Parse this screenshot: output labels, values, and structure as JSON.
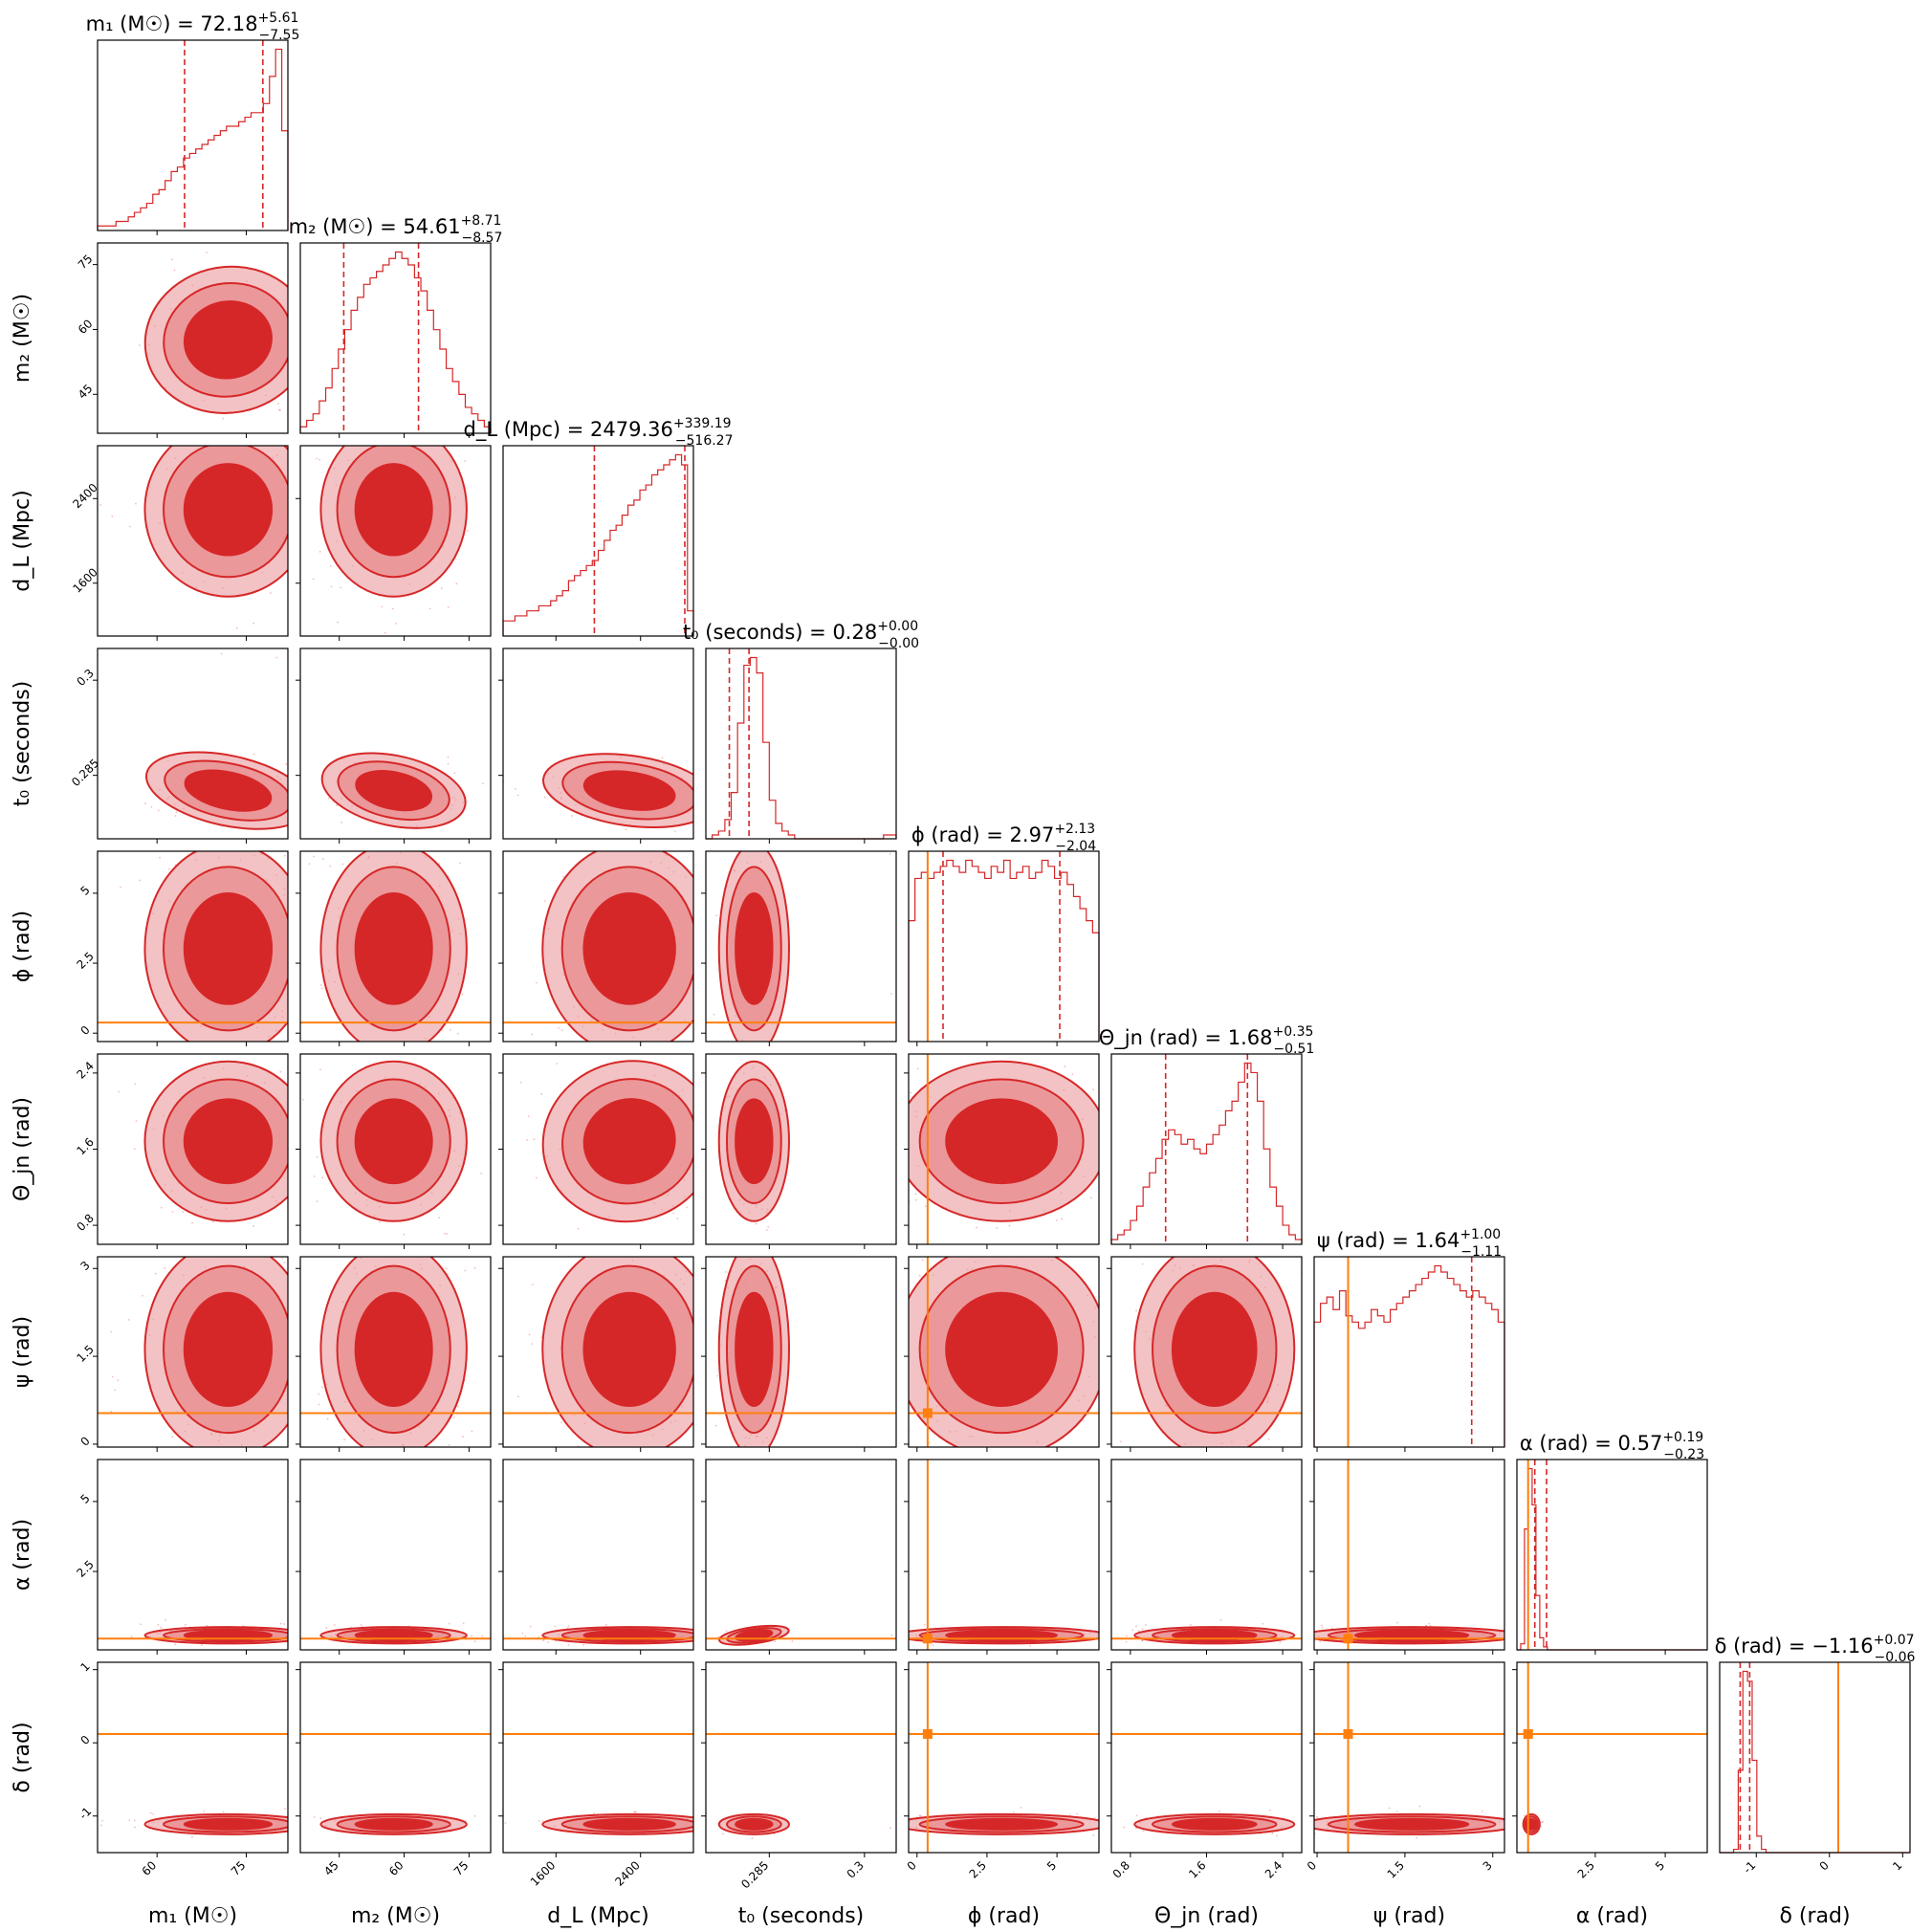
{
  "chart_data": {
    "type": "corner",
    "colors": {
      "posterior": "#d62728",
      "posterior_light": "#e99093",
      "truth": "#ff7f0e",
      "frame": "#000000"
    },
    "parameters": [
      {
        "label": "m₁ (M☉)",
        "title": "m₁ (M☉) = 72.18",
        "median": 72.18,
        "err_plus": "+5.61",
        "err_minus": "−7.55",
        "range": [
          50,
          82
        ],
        "ticks": [
          60,
          75
        ],
        "quantiles": [
          64.63,
          77.79
        ],
        "truth": null,
        "hist": [
          1,
          1,
          1,
          2,
          2,
          3,
          4,
          5,
          6,
          8,
          9,
          11,
          13,
          14,
          16,
          17,
          18,
          19,
          20,
          21,
          22,
          23,
          23,
          24,
          25,
          26,
          26,
          28,
          34,
          40,
          22
        ]
      },
      {
        "label": "m₂ (M☉)",
        "title": "m₂ (M☉) = 54.61",
        "median": 54.61,
        "err_plus": "+8.71",
        "err_minus": "−8.57",
        "range": [
          36,
          80
        ],
        "ticks": [
          45,
          60,
          75
        ],
        "quantiles": [
          46.04,
          63.32
        ],
        "truth": null,
        "hist": [
          1,
          2,
          3,
          5,
          7,
          10,
          13,
          16,
          19,
          21,
          23,
          24,
          25,
          26,
          27,
          28,
          27,
          26,
          24,
          22,
          19,
          16,
          13,
          10,
          8,
          6,
          4,
          3,
          2,
          1
        ]
      },
      {
        "label": "d_L (Mpc)",
        "title": "d_L (Mpc) = 2479.36",
        "median": 2479.36,
        "err_plus": "+339.19",
        "err_minus": "−516.27",
        "range": [
          1100,
          2900
        ],
        "ticks": [
          1600,
          2400
        ],
        "quantiles": [
          1963.09,
          2818.55
        ],
        "truth": null,
        "hist": [
          3,
          3,
          4,
          4,
          5,
          5,
          6,
          6,
          7,
          8,
          9,
          11,
          12,
          13,
          14,
          15,
          17,
          19,
          21,
          22,
          24,
          26,
          27,
          29,
          30,
          32,
          33,
          34,
          35,
          36,
          34,
          5
        ]
      },
      {
        "label": "t₀ (seconds)",
        "title": "t₀ (seconds) = 0.28",
        "median": 0.28,
        "err_plus": "+0.00",
        "err_minus": "−0.00",
        "range": [
          0.275,
          0.305
        ],
        "ticks": [
          0.285,
          0.3
        ],
        "quantiles": [
          0.2787,
          0.2818
        ],
        "truth": null,
        "hist": [
          0,
          1,
          2,
          5,
          12,
          30,
          45,
          47,
          43,
          25,
          10,
          4,
          2,
          1,
          0,
          0,
          0,
          0,
          0,
          0,
          0,
          0,
          0,
          0,
          0,
          0,
          0,
          0,
          1,
          1
        ]
      },
      {
        "label": "ϕ (rad)",
        "title": "ϕ (rad) = 2.97",
        "median": 2.97,
        "err_plus": "+2.13",
        "err_minus": "−2.04",
        "range": [
          -0.3,
          6.5
        ],
        "ticks": [
          0.0,
          2.5,
          5.0
        ],
        "quantiles": [
          0.93,
          5.1
        ],
        "truth": 0.38,
        "hist": [
          20,
          27,
          28,
          27,
          28,
          29,
          30,
          29,
          28,
          30,
          29,
          28,
          27,
          29,
          28,
          30,
          27,
          28,
          29,
          27,
          28,
          30,
          29,
          27,
          28,
          26,
          24,
          22,
          20,
          18
        ]
      },
      {
        "label": "Θ_jn (rad)",
        "title": "Θ_jn (rad) = 1.68",
        "median": 1.68,
        "err_plus": "+0.35",
        "err_minus": "−0.51",
        "range": [
          0.6,
          2.6
        ],
        "ticks": [
          0.8,
          1.6,
          2.4
        ],
        "quantiles": [
          1.17,
          2.03
        ],
        "truth": null,
        "hist": [
          1,
          2,
          3,
          5,
          8,
          12,
          15,
          18,
          22,
          24,
          23,
          21,
          22,
          20,
          19,
          21,
          23,
          25,
          28,
          30,
          34,
          38,
          36,
          30,
          20,
          12,
          8,
          4,
          2,
          1
        ]
      },
      {
        "label": "ψ (rad)",
        "title": "ψ (rad) = 1.64",
        "median": 1.64,
        "err_plus": "+1.00",
        "err_minus": "−1.11",
        "range": [
          -0.05,
          3.2
        ],
        "ticks": [
          0.0,
          1.5,
          3.0
        ],
        "quantiles": [
          0.53,
          2.64
        ],
        "truth": 0.53,
        "hist": [
          20,
          23,
          24,
          22,
          25,
          21,
          20,
          19,
          20,
          22,
          21,
          20,
          22,
          23,
          24,
          25,
          26,
          27,
          28,
          29,
          28,
          27,
          26,
          25,
          24,
          25,
          24,
          23,
          22,
          20
        ]
      },
      {
        "label": "α (rad)",
        "title": "α (rad) = 0.57",
        "median": 0.57,
        "err_plus": "+0.19",
        "err_minus": "−0.23",
        "range": [
          -0.3,
          6.5
        ],
        "ticks": [
          2.5,
          5.0
        ],
        "quantiles": [
          0.34,
          0.76
        ],
        "truth": 0.1,
        "hist": [
          0,
          2,
          40,
          60,
          48,
          18,
          4,
          1,
          0,
          0,
          0,
          0,
          0,
          0,
          0,
          0,
          0,
          0,
          0,
          0,
          0,
          0,
          0,
          0,
          0,
          0,
          0,
          0,
          0,
          0,
          0,
          0,
          0,
          0,
          0,
          0,
          0,
          0,
          0,
          0,
          0,
          0,
          0,
          0,
          0,
          0,
          0,
          0,
          0,
          0
        ]
      },
      {
        "label": "δ (rad)",
        "title": "δ (rad) = −1.16",
        "median": -1.16,
        "err_plus": "+0.07",
        "err_minus": "−0.06",
        "range": [
          -1.5,
          1.1
        ],
        "ticks": [
          -1,
          0,
          1
        ],
        "quantiles": [
          -1.22,
          -1.09
        ],
        "truth": 0.12,
        "hist": [
          0,
          0,
          0,
          1,
          25,
          55,
          52,
          28,
          5,
          1,
          0,
          0,
          0,
          0,
          0,
          0,
          0,
          0,
          0,
          0,
          0,
          0,
          0,
          0,
          0,
          0,
          0,
          0,
          0,
          0,
          0,
          0,
          0,
          0,
          0,
          0,
          0,
          0,
          0,
          0,
          0
        ]
      }
    ]
  }
}
